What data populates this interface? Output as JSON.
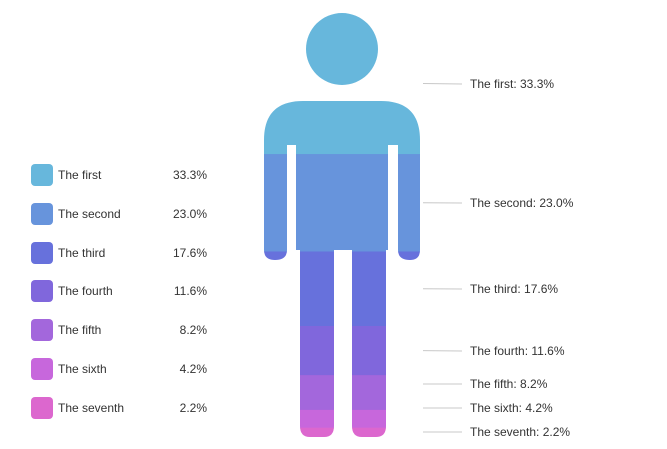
{
  "chart_data": {
    "type": "pictorial-stacked",
    "shape": "person",
    "categories": [
      "The first",
      "The second",
      "The third",
      "The fourth",
      "The fifth",
      "The sixth",
      "The seventh"
    ],
    "values": [
      33.3,
      23.0,
      17.6,
      11.6,
      8.2,
      4.2,
      2.2
    ],
    "value_labels": [
      "33.3%",
      "23.0%",
      "17.6%",
      "11.6%",
      "8.2%",
      "4.2%",
      "2.2%"
    ],
    "callout_labels": [
      "The first: 33.3%",
      "The second: 23.0%",
      "The third: 17.6%",
      "The fourth: 11.6%",
      "The fifth: 8.2%",
      "The sixth: 4.2%",
      "The seventh: 2.2%"
    ],
    "colors": [
      "#67b7dc",
      "#6794dc",
      "#6771dc",
      "#8067dc",
      "#a367dc",
      "#c767dc",
      "#dc67ce"
    ],
    "legend_position": "left"
  }
}
